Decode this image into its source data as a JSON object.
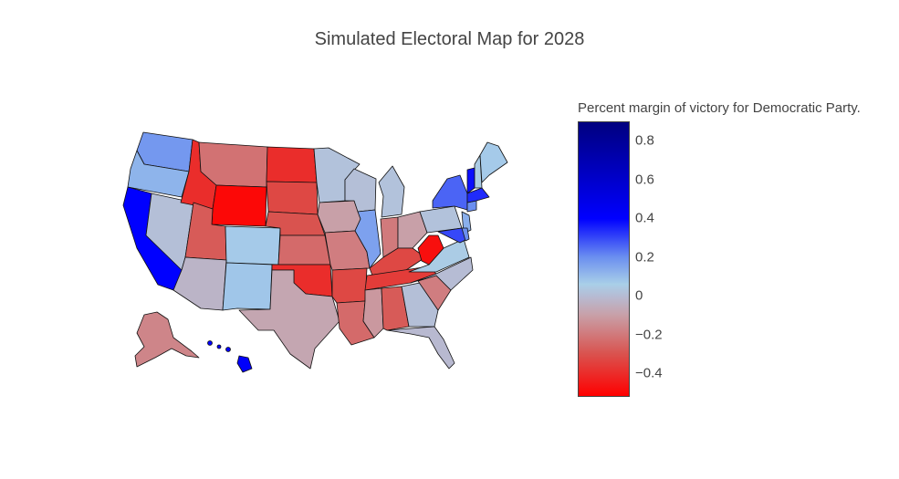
{
  "title": "Simulated Electoral Map for 2028",
  "colorbar": {
    "title": "Percent margin of victory for Democratic Party.",
    "range": [
      -0.52,
      0.9
    ],
    "ticks": [
      {
        "value": 0.8,
        "label": "0.8"
      },
      {
        "value": 0.6,
        "label": "0.6"
      },
      {
        "value": 0.4,
        "label": "0.4"
      },
      {
        "value": 0.2,
        "label": "0.2"
      },
      {
        "value": 0,
        "label": "0"
      },
      {
        "value": -0.2,
        "label": "−0.2"
      },
      {
        "value": -0.4,
        "label": "−0.4"
      }
    ],
    "colorscale": [
      [
        -0.52,
        "#ff0000"
      ],
      [
        -0.3,
        "#d9534f"
      ],
      [
        -0.1,
        "#c8a0a8"
      ],
      [
        0.0,
        "#b6bcd4"
      ],
      [
        0.06,
        "#a9cfe8"
      ],
      [
        0.2,
        "#6b8ff0"
      ],
      [
        0.4,
        "#0000ff"
      ],
      [
        0.9,
        "#00007f"
      ]
    ]
  },
  "states": [
    {
      "code": "WA",
      "margin": 0.18
    },
    {
      "code": "OR",
      "margin": 0.12
    },
    {
      "code": "CA",
      "margin": 0.4
    },
    {
      "code": "NV",
      "margin": 0.01
    },
    {
      "code": "ID",
      "margin": -0.4
    },
    {
      "code": "MT",
      "margin": -0.22
    },
    {
      "code": "WY",
      "margin": -0.5
    },
    {
      "code": "UT",
      "margin": -0.28
    },
    {
      "code": "AZ",
      "margin": -0.03
    },
    {
      "code": "CO",
      "margin": 0.07
    },
    {
      "code": "NM",
      "margin": 0.08
    },
    {
      "code": "ND",
      "margin": -0.4
    },
    {
      "code": "SD",
      "margin": -0.33
    },
    {
      "code": "NE",
      "margin": -0.3
    },
    {
      "code": "KS",
      "margin": -0.24
    },
    {
      "code": "OK",
      "margin": -0.4
    },
    {
      "code": "TX",
      "margin": -0.08
    },
    {
      "code": "MN",
      "margin": 0.02
    },
    {
      "code": "IA",
      "margin": -0.1
    },
    {
      "code": "MO",
      "margin": -0.19
    },
    {
      "code": "AR",
      "margin": -0.33
    },
    {
      "code": "LA",
      "margin": -0.24
    },
    {
      "code": "WI",
      "margin": 0.01
    },
    {
      "code": "IL",
      "margin": 0.16
    },
    {
      "code": "MI",
      "margin": 0.02
    },
    {
      "code": "IN",
      "margin": -0.2
    },
    {
      "code": "OH",
      "margin": -0.1
    },
    {
      "code": "KY",
      "margin": -0.33
    },
    {
      "code": "TN",
      "margin": -0.36
    },
    {
      "code": "MS",
      "margin": -0.12
    },
    {
      "code": "AL",
      "margin": -0.28
    },
    {
      "code": "GA",
      "margin": 0.01
    },
    {
      "code": "FL",
      "margin": -0.01
    },
    {
      "code": "SC",
      "margin": -0.19
    },
    {
      "code": "NC",
      "margin": 0.0
    },
    {
      "code": "VA",
      "margin": 0.05
    },
    {
      "code": "WV",
      "margin": -0.48
    },
    {
      "code": "PA",
      "margin": 0.02
    },
    {
      "code": "NY",
      "margin": 0.26
    },
    {
      "code": "VT",
      "margin": 0.38
    },
    {
      "code": "NH",
      "margin": 0.05
    },
    {
      "code": "ME",
      "margin": 0.07
    },
    {
      "code": "MA",
      "margin": 0.34
    },
    {
      "code": "CT",
      "margin": 0.2
    },
    {
      "code": "NJ",
      "margin": 0.13
    },
    {
      "code": "MD",
      "margin": 0.3
    },
    {
      "code": "DE",
      "margin": 0.2
    },
    {
      "code": "AK",
      "margin": -0.17
    },
    {
      "code": "HI",
      "margin": 0.42
    }
  ]
}
